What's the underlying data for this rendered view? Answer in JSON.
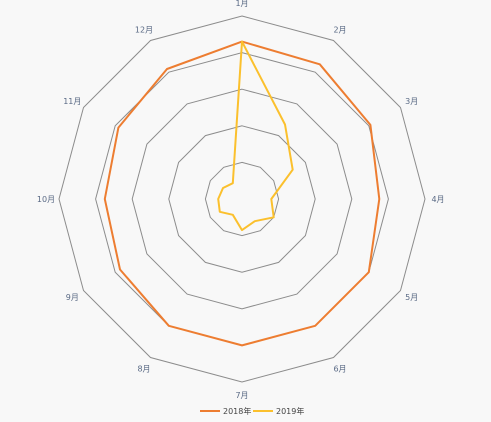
{
  "chart_data": {
    "type": "radar",
    "categories": [
      "1月",
      "2月",
      "3月",
      "4月",
      "5月",
      "6月",
      "7月",
      "8月",
      "9月",
      "10月",
      "11月",
      "12月"
    ],
    "rmax": 100,
    "rings": 5,
    "grid_color": "#8c8c8c",
    "series": [
      {
        "name": "2018年",
        "color": "#ed7d31",
        "values": [
          86,
          85,
          81,
          75,
          80,
          80,
          80,
          80,
          77,
          75,
          78,
          82
        ]
      },
      {
        "name": "2019年",
        "color": "#fbc02d",
        "values": [
          86,
          47,
          32,
          16,
          20,
          14,
          17,
          10,
          14,
          13,
          12,
          10
        ]
      }
    ],
    "legend_position": "bottom"
  }
}
